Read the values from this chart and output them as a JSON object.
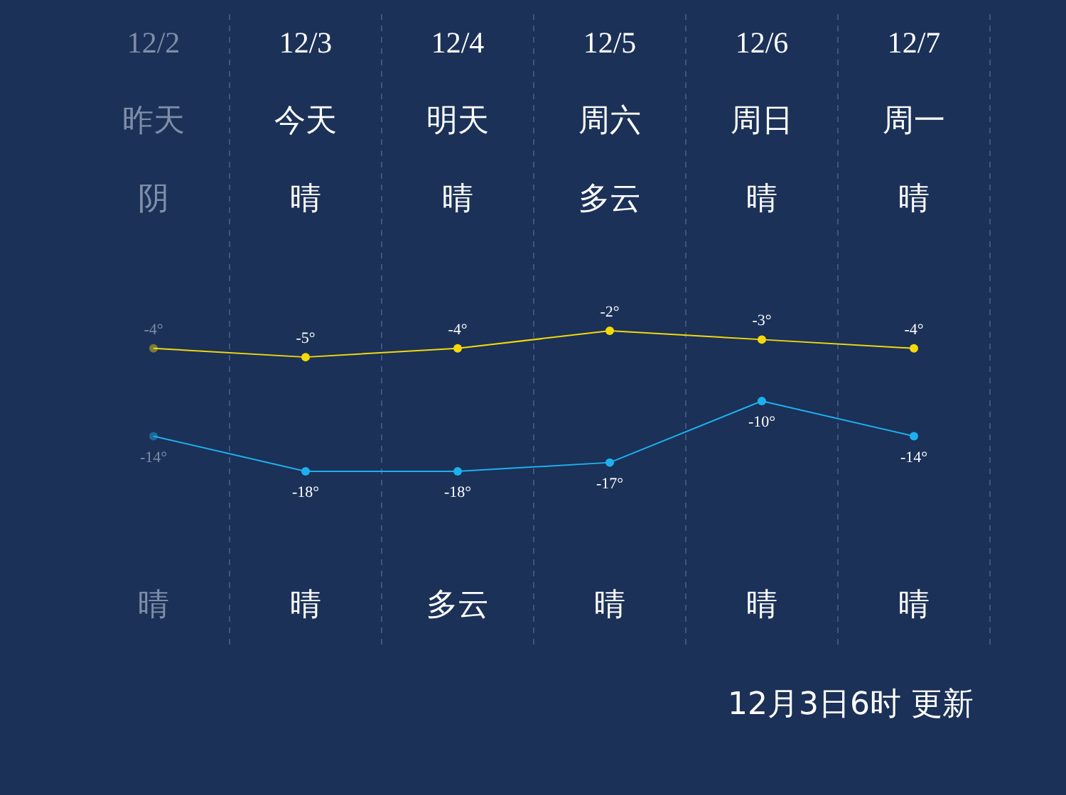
{
  "chart_data": {
    "type": "line",
    "categories": [
      "12/2",
      "12/3",
      "12/4",
      "12/5",
      "12/6",
      "12/7"
    ],
    "series": [
      {
        "color": "#f5d90a",
        "values": [
          -4,
          -5,
          -4,
          -2,
          -3,
          -4
        ],
        "value_labels": [
          "-4°",
          "-5°",
          "-4°",
          "-2°",
          "-3°",
          "-4°"
        ]
      },
      {
        "color": "#1eb0ee",
        "values": [
          -14,
          -18,
          -18,
          -17,
          -10,
          -14
        ],
        "value_labels": [
          "-14°",
          "-18°",
          "-18°",
          "-17°",
          "-10°",
          "-14°"
        ]
      }
    ],
    "annotations": [
      "昨天",
      "今天",
      "明天",
      "周六",
      "周日",
      "周一",
      "阴",
      "晴",
      "晴",
      "多云",
      "晴",
      "晴",
      "晴",
      "晴",
      "多云",
      "晴",
      "晴",
      "晴",
      "12月3日6时 更新"
    ],
    "marker": "circle",
    "line_style": "solid",
    "grid": "x"
  }
}
